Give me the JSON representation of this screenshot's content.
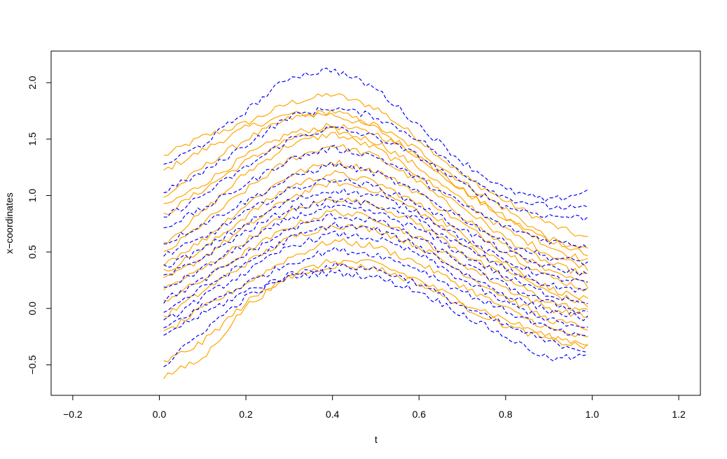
{
  "chart_data": {
    "type": "line",
    "title": "",
    "xlabel": "t",
    "ylabel": "x−coordinates",
    "xlim": [
      -0.25,
      1.25
    ],
    "ylim": [
      -0.77,
      2.28
    ],
    "x_ticks": [
      -0.2,
      0.0,
      0.2,
      0.4,
      0.6,
      0.8,
      1.0,
      1.2
    ],
    "x_tick_labels": [
      "−0.2",
      "0.0",
      "0.2",
      "0.4",
      "0.6",
      "0.8",
      "1.0",
      "1.2"
    ],
    "y_ticks": [
      -0.5,
      0.0,
      0.5,
      1.0,
      1.5,
      2.0
    ],
    "y_tick_labels": [
      "−0.5",
      "0.0",
      "0.5",
      "1.0",
      "1.5",
      "2.0"
    ],
    "grid": false,
    "legend": "none",
    "x": [
      0.0,
      0.1,
      0.2,
      0.3,
      0.4,
      0.5,
      0.6,
      0.7,
      0.8,
      0.9,
      1.0
    ],
    "groups": [
      {
        "color": "#FFA500",
        "line_style": "solid",
        "series": [
          {
            "values": [
              1.33,
              1.52,
              1.64,
              1.82,
              1.9,
              1.78,
              1.5,
              1.18,
              0.95,
              0.75,
              0.6
            ]
          },
          {
            "values": [
              1.2,
              1.4,
              1.6,
              1.72,
              1.72,
              1.6,
              1.35,
              1.05,
              0.8,
              0.6,
              0.52
            ]
          },
          {
            "values": [
              0.95,
              1.25,
              1.5,
              1.68,
              1.75,
              1.62,
              1.4,
              1.12,
              0.88,
              0.62,
              0.45
            ]
          },
          {
            "values": [
              0.88,
              1.1,
              1.35,
              1.55,
              1.62,
              1.55,
              1.35,
              1.05,
              0.8,
              0.55,
              0.4
            ]
          },
          {
            "values": [
              0.8,
              1.05,
              1.3,
              1.5,
              1.58,
              1.48,
              1.25,
              0.95,
              0.7,
              0.48,
              0.35
            ]
          },
          {
            "values": [
              0.55,
              0.85,
              1.2,
              1.45,
              1.55,
              1.42,
              1.18,
              0.9,
              0.62,
              0.4,
              0.28
            ]
          },
          {
            "values": [
              0.45,
              0.75,
              1.05,
              1.32,
              1.45,
              1.35,
              1.12,
              0.82,
              0.55,
              0.32,
              0.2
            ]
          },
          {
            "values": [
              0.38,
              0.6,
              0.92,
              1.18,
              1.3,
              1.22,
              1.02,
              0.75,
              0.5,
              0.28,
              0.15
            ]
          },
          {
            "values": [
              0.3,
              0.52,
              0.82,
              1.08,
              1.2,
              1.12,
              0.92,
              0.65,
              0.4,
              0.18,
              0.06
            ]
          },
          {
            "values": [
              0.22,
              0.45,
              0.72,
              0.98,
              1.12,
              1.05,
              0.86,
              0.58,
              0.35,
              0.14,
              0.02
            ]
          },
          {
            "values": [
              0.15,
              0.35,
              0.6,
              0.85,
              0.98,
              0.92,
              0.75,
              0.5,
              0.26,
              0.06,
              -0.04
            ]
          },
          {
            "values": [
              0.05,
              0.25,
              0.5,
              0.72,
              0.86,
              0.8,
              0.62,
              0.4,
              0.18,
              0.0,
              -0.08
            ]
          },
          {
            "values": [
              -0.1,
              0.15,
              0.4,
              0.62,
              0.74,
              0.7,
              0.55,
              0.32,
              0.1,
              -0.1,
              -0.18
            ]
          },
          {
            "values": [
              -0.25,
              0.0,
              0.22,
              0.45,
              0.6,
              0.55,
              0.4,
              0.2,
              0.0,
              -0.18,
              -0.28
            ]
          },
          {
            "values": [
              -0.5,
              -0.3,
              0.05,
              0.3,
              0.42,
              0.4,
              0.25,
              0.06,
              -0.1,
              -0.25,
              -0.32
            ]
          },
          {
            "values": [
              -0.62,
              -0.45,
              0.02,
              0.28,
              0.38,
              0.36,
              0.22,
              0.02,
              -0.15,
              -0.28,
              -0.35
            ]
          }
        ]
      },
      {
        "color": "#0000FF",
        "line_style": "dashed",
        "series": [
          {
            "values": [
              1.25,
              1.45,
              1.75,
              2.05,
              2.12,
              1.95,
              1.62,
              1.3,
              1.05,
              0.95,
              1.05
            ]
          },
          {
            "values": [
              1.02,
              1.2,
              1.45,
              1.7,
              1.78,
              1.7,
              1.5,
              1.2,
              0.98,
              0.9,
              0.88
            ]
          },
          {
            "values": [
              0.78,
              1.0,
              1.25,
              1.5,
              1.6,
              1.52,
              1.35,
              1.1,
              0.9,
              0.82,
              0.8
            ]
          },
          {
            "values": [
              0.7,
              0.88,
              1.1,
              1.32,
              1.42,
              1.35,
              1.15,
              0.92,
              0.72,
              0.6,
              0.55
            ]
          },
          {
            "values": [
              0.55,
              0.75,
              0.95,
              1.15,
              1.28,
              1.2,
              1.02,
              0.8,
              0.58,
              0.45,
              0.4
            ]
          },
          {
            "values": [
              0.45,
              0.62,
              0.85,
              1.05,
              1.15,
              1.08,
              0.92,
              0.7,
              0.5,
              0.36,
              0.3
            ]
          },
          {
            "values": [
              0.35,
              0.52,
              0.75,
              0.95,
              1.05,
              1.0,
              0.85,
              0.62,
              0.42,
              0.28,
              0.22
            ]
          },
          {
            "values": [
              0.25,
              0.45,
              0.68,
              0.88,
              0.96,
              0.92,
              0.78,
              0.55,
              0.35,
              0.2,
              0.15
            ]
          },
          {
            "values": [
              0.15,
              0.35,
              0.58,
              0.8,
              0.9,
              0.85,
              0.7,
              0.48,
              0.28,
              0.12,
              0.05
            ]
          },
          {
            "values": [
              0.05,
              0.25,
              0.48,
              0.7,
              0.82,
              0.78,
              0.62,
              0.4,
              0.2,
              0.05,
              -0.05
            ]
          },
          {
            "values": [
              -0.05,
              0.18,
              0.4,
              0.62,
              0.74,
              0.7,
              0.55,
              0.32,
              0.12,
              -0.02,
              -0.1
            ]
          },
          {
            "values": [
              -0.15,
              0.1,
              0.32,
              0.55,
              0.66,
              0.62,
              0.48,
              0.25,
              0.05,
              -0.1,
              -0.2
            ]
          },
          {
            "values": [
              -0.2,
              0.02,
              0.22,
              0.4,
              0.52,
              0.48,
              0.35,
              0.15,
              -0.02,
              -0.18,
              -0.28
            ]
          },
          {
            "values": [
              -0.25,
              -0.05,
              0.15,
              0.3,
              0.38,
              0.35,
              0.22,
              0.02,
              -0.15,
              -0.3,
              -0.38
            ]
          },
          {
            "values": [
              -0.55,
              -0.2,
              0.1,
              0.28,
              0.32,
              0.28,
              0.15,
              -0.05,
              -0.25,
              -0.45,
              -0.42
            ]
          }
        ]
      }
    ]
  }
}
